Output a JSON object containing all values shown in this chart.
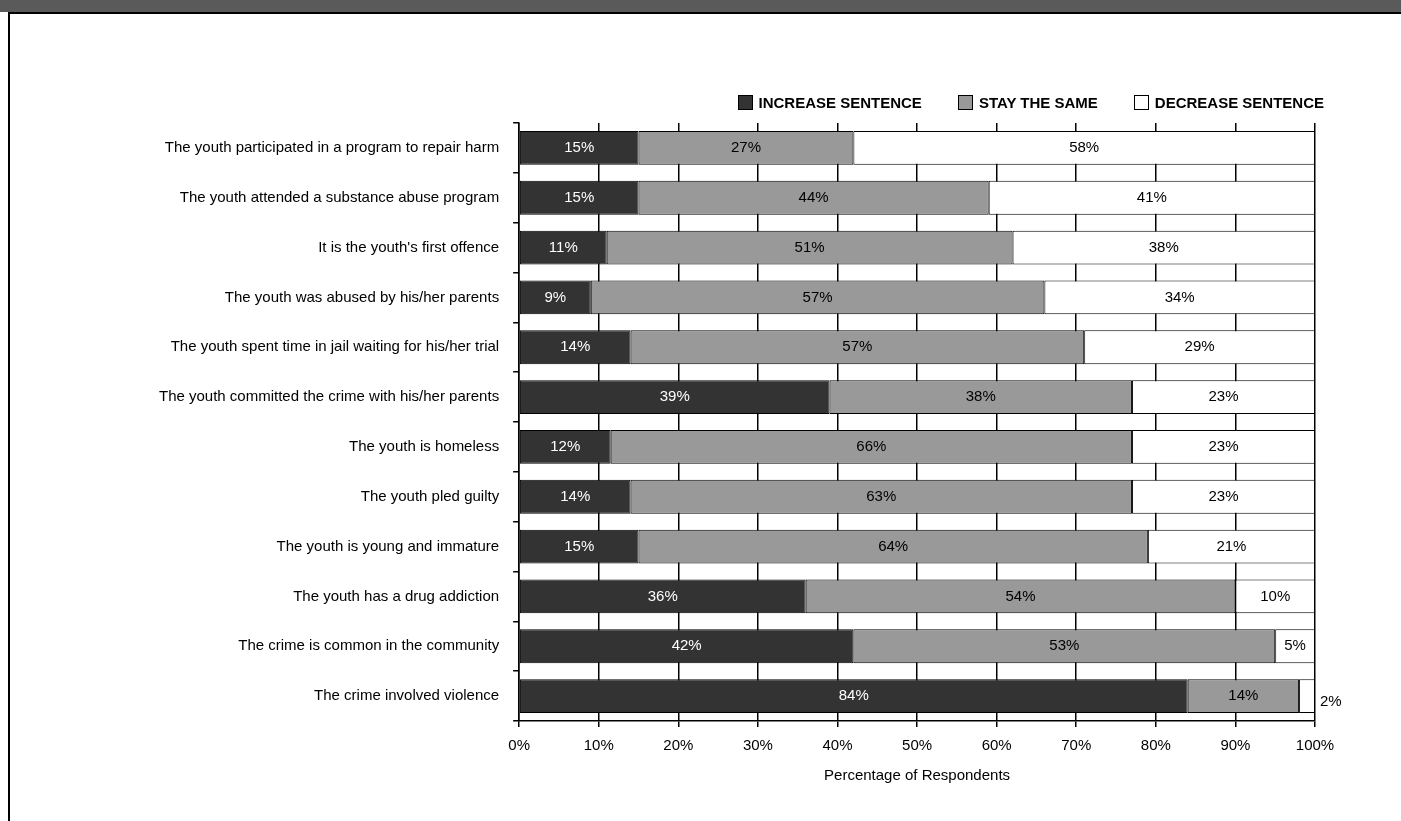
{
  "chart_data": {
    "type": "bar",
    "orientation": "horizontal",
    "stacked": true,
    "xlabel": "Percentage of Respondents",
    "categories": [
      "The youth participated in a program to repair harm",
      "The youth attended a substance abuse program",
      "It is the youth's first offence",
      "The youth was abused by his/her parents",
      "The youth spent time in jail waiting for his/her trial",
      "The youth committed the crime with his/her parents",
      "The youth is homeless",
      "The youth pled guilty",
      "The youth is young and immature",
      "The youth has a drug addiction",
      "The crime is common in the community",
      "The crime involved violence"
    ],
    "series": [
      {
        "name": "INCREASE SENTENCE",
        "color": "#333333",
        "values": [
          15,
          15,
          11,
          9,
          14,
          39,
          11.5,
          14,
          15,
          36,
          42,
          84
        ],
        "value_labels": [
          "15%",
          "15%",
          "11%",
          "9%",
          "14%",
          "39%",
          "12%",
          "14%",
          "15%",
          "36%",
          "42%",
          "84%"
        ]
      },
      {
        "name": "STAY THE SAME",
        "color": "#999999",
        "values": [
          27,
          44,
          51,
          57,
          57,
          38,
          65.5,
          63,
          64,
          54,
          53,
          14
        ],
        "value_labels": [
          "27%",
          "44%",
          "51%",
          "57%",
          "57%",
          "38%",
          "66%",
          "63%",
          "64%",
          "54%",
          "53%",
          "14%"
        ]
      },
      {
        "name": "DECREASE SENTENCE",
        "color": "#ffffff",
        "values": [
          58,
          41,
          38,
          34,
          29,
          23,
          23,
          23,
          21,
          10,
          5,
          2
        ],
        "value_labels": [
          "58%",
          "41%",
          "38%",
          "34%",
          "29%",
          "23%",
          "23%",
          "23%",
          "21%",
          "10%",
          "5%",
          "2%"
        ]
      }
    ],
    "xlim": [
      0,
      100
    ],
    "xticks": [
      {
        "value": 0,
        "label": "0%"
      },
      {
        "value": 10,
        "label": "10%"
      },
      {
        "value": 20,
        "label": "20%"
      },
      {
        "value": 30,
        "label": "30%"
      },
      {
        "value": 40,
        "label": "40%"
      },
      {
        "value": 50,
        "label": "50%"
      },
      {
        "value": 60,
        "label": "60%"
      },
      {
        "value": 70,
        "label": "70%"
      },
      {
        "value": 80,
        "label": "80%"
      },
      {
        "value": 90,
        "label": "90%"
      },
      {
        "value": 100,
        "label": "100%"
      }
    ],
    "grid": "x",
    "legend": "top"
  }
}
